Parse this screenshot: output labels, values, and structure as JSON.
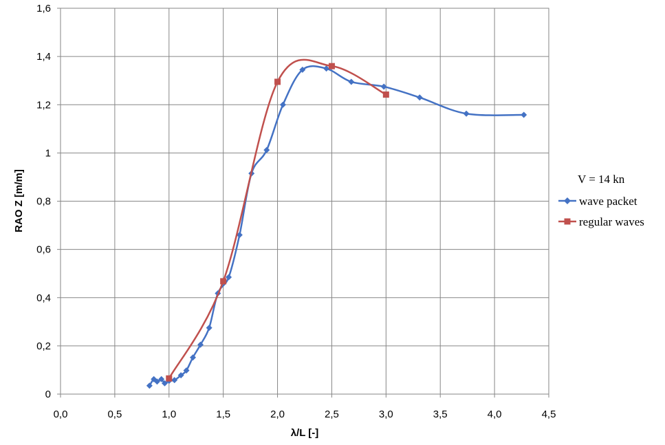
{
  "chart_data": {
    "type": "line",
    "xlabel": "λ/L [-]",
    "ylabel": "RAO Z [m/m]",
    "xlim": [
      0,
      4.5
    ],
    "ylim": [
      0,
      1.6
    ],
    "x_ticks": [
      "0,0",
      "0,5",
      "1,0",
      "1,5",
      "2,0",
      "2,5",
      "3,0",
      "3,5",
      "4,0",
      "4,5"
    ],
    "y_ticks": [
      "0",
      "0,2",
      "0,4",
      "0,6",
      "0,8",
      "1",
      "1,2",
      "1,4",
      "1,6"
    ],
    "grid": true,
    "legend": {
      "position": "right",
      "title": "V = 14 kn"
    },
    "series": [
      {
        "name": "wave packet",
        "color": "#4472C4",
        "marker": "diamond",
        "points": [
          [
            0.82,
            0.035
          ],
          [
            0.86,
            0.062
          ],
          [
            0.89,
            0.052
          ],
          [
            0.93,
            0.062
          ],
          [
            0.96,
            0.045
          ],
          [
            1.0,
            0.055
          ],
          [
            1.05,
            0.058
          ],
          [
            1.11,
            0.078
          ],
          [
            1.16,
            0.098
          ],
          [
            1.22,
            0.152
          ],
          [
            1.29,
            0.205
          ],
          [
            1.37,
            0.275
          ],
          [
            1.45,
            0.418
          ],
          [
            1.55,
            0.485
          ],
          [
            1.65,
            0.66
          ],
          [
            1.76,
            0.915
          ],
          [
            1.9,
            1.012
          ],
          [
            2.05,
            1.2
          ],
          [
            2.23,
            1.345
          ],
          [
            2.45,
            1.35
          ],
          [
            2.68,
            1.295
          ],
          [
            2.98,
            1.275
          ],
          [
            3.31,
            1.23
          ],
          [
            3.74,
            1.163
          ],
          [
            4.27,
            1.158
          ]
        ]
      },
      {
        "name": "regular waves",
        "color": "#C0504D",
        "marker": "square",
        "points": [
          [
            1.0,
            0.065
          ],
          [
            1.5,
            0.468
          ],
          [
            2.0,
            1.295
          ],
          [
            2.5,
            1.36
          ],
          [
            3.0,
            1.242
          ]
        ]
      }
    ]
  }
}
